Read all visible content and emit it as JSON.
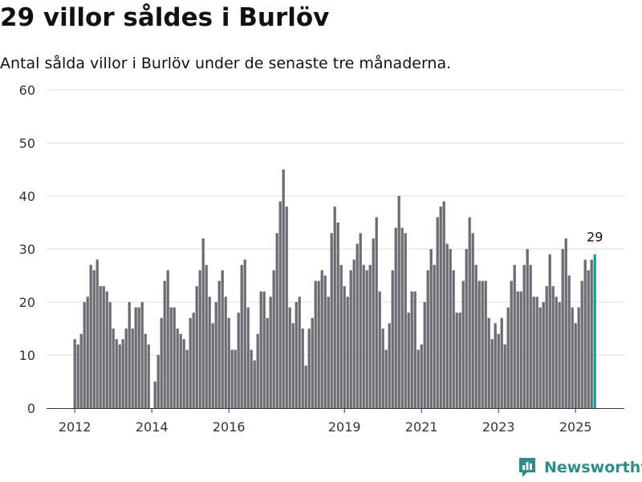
{
  "header": {
    "title": "29 villor såldes i Burlöv",
    "subtitle": "Antal sålda villor i Burlöv under de senaste tre månaderna."
  },
  "brand": {
    "name": "Newsworthy",
    "icon": "newsworthy-logo-icon",
    "color": "#2a8f89"
  },
  "chart_data": {
    "type": "bar",
    "title": "29 villor såldes i Burlöv",
    "subtitle": "Antal sålda villor i Burlöv under de senaste tre månaderna.",
    "ylim": [
      0,
      60
    ],
    "yticks": [
      0,
      10,
      20,
      30,
      40,
      50,
      60
    ],
    "xtick_labels": [
      "2012",
      "2014",
      "2016",
      "2019",
      "2021",
      "2023",
      "2025"
    ],
    "grid": true,
    "bar_color": "#6d6c72",
    "highlight_color": "#159e95",
    "highlight_label": "29",
    "series": [
      {
        "values": [
          13,
          12,
          14,
          20,
          21,
          27,
          26,
          28,
          23,
          23,
          22,
          20,
          15,
          13,
          12,
          13,
          15,
          20,
          15,
          19,
          19,
          20,
          14,
          12,
          0,
          5,
          10,
          17,
          24,
          26,
          19,
          19,
          15,
          14,
          13,
          11,
          17,
          18,
          23,
          26,
          32,
          27,
          21,
          16,
          20,
          24,
          26,
          21,
          17,
          11,
          11,
          18,
          27,
          28,
          19,
          11,
          9,
          14,
          22,
          22,
          17,
          21,
          26,
          33,
          39,
          45,
          38,
          19,
          16,
          20,
          21,
          15,
          8,
          15,
          17,
          24,
          24,
          26,
          25,
          21,
          33,
          38,
          35,
          27,
          23,
          21,
          26,
          28,
          31,
          33,
          27,
          26,
          27,
          32,
          36,
          22,
          15,
          11,
          16,
          26,
          34,
          40,
          34,
          33,
          18,
          22,
          22,
          11,
          12,
          20,
          26,
          30,
          27,
          36,
          38,
          39,
          31,
          30,
          26,
          18,
          18,
          24,
          30,
          36,
          33,
          27,
          24,
          24,
          24,
          17,
          13,
          16,
          14,
          17,
          12,
          19,
          24,
          27,
          22,
          22,
          27,
          30,
          27,
          21,
          21,
          19,
          20,
          23,
          29,
          23,
          21,
          20,
          30,
          32,
          25,
          19,
          16,
          19,
          24,
          28,
          26,
          28,
          29
        ]
      }
    ]
  }
}
